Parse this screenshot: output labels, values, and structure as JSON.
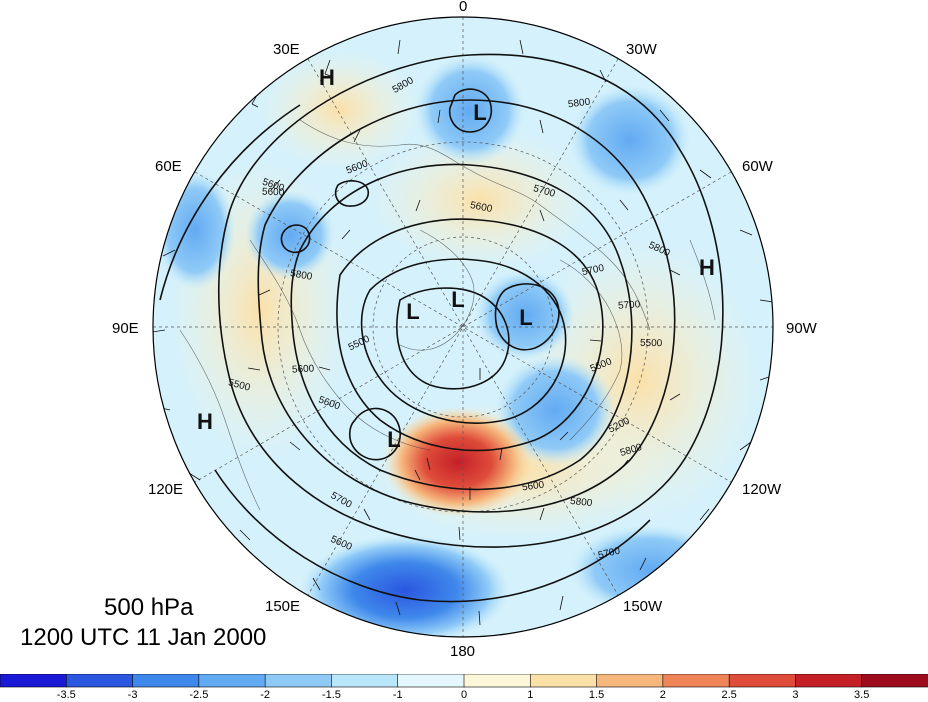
{
  "title": {
    "level": "500 hPa",
    "time": "1200 UTC 11 Jan 2000"
  },
  "longitude_labels": [
    "0",
    "30W",
    "60W",
    "90W",
    "120W",
    "150W",
    "180",
    "150E",
    "120E",
    "90E",
    "60E",
    "30E"
  ],
  "pressure_centers": [
    {
      "type": "H",
      "name": "high-center"
    },
    {
      "type": "L",
      "name": "low-center"
    }
  ],
  "contour_labels": [
    "5800",
    "5800",
    "5700",
    "5600",
    "5600",
    "5800",
    "5700",
    "5600",
    "5500",
    "5600",
    "5600",
    "5800",
    "5800",
    "5700",
    "5600",
    "5500",
    "5600",
    "5500",
    "5600",
    "5700",
    "5800",
    "5200",
    "5700",
    "5600"
  ],
  "colorbar": {
    "ticks": [
      "-3.5",
      "-3",
      "-2.5",
      "-2",
      "-1.5",
      "-1",
      "0",
      "1",
      "1.5",
      "2",
      "2.5",
      "3",
      "3.5"
    ],
    "colors": [
      "#1a1ad6",
      "#2a56e0",
      "#3f88eb",
      "#62aaf2",
      "#8fcaf7",
      "#b9e6fb",
      "#e3f7fd",
      "#fdf6d8",
      "#fbe0a8",
      "#f6b67c",
      "#ee8458",
      "#df4c3a",
      "#c51f28",
      "#9e0b1c"
    ]
  }
}
